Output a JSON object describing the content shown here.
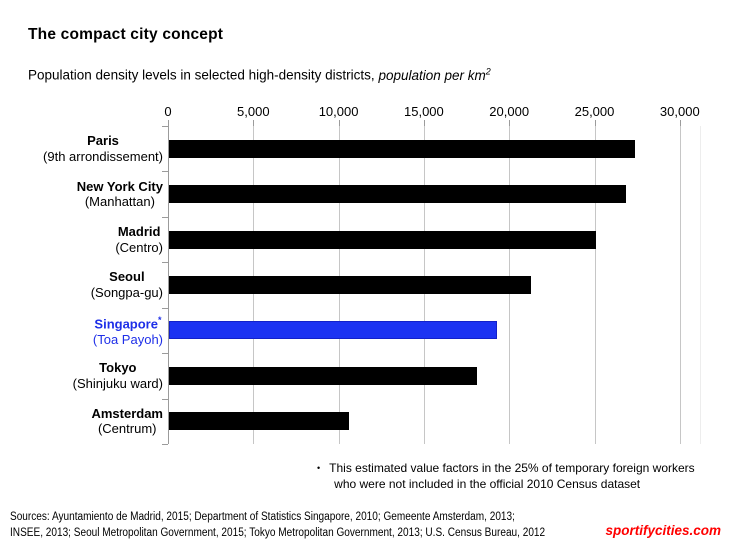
{
  "title": "The compact city concept",
  "subtitle": {
    "regular": "Population density levels in selected high-density districts, ",
    "italic": "population per km",
    "superscript": "2"
  },
  "chart_data": {
    "type": "bar",
    "orientation": "horizontal",
    "title": "Population density levels in selected high-density districts, population per km2",
    "categories": [
      {
        "city": "Paris",
        "district": "(9th arrondissement)"
      },
      {
        "city": "New York City",
        "district": "(Manhattan)"
      },
      {
        "city": "Madrid",
        "district": "(Centro)"
      },
      {
        "city": "Seoul",
        "district": "(Songpa-gu)"
      },
      {
        "city": "Singapore",
        "marker": "*",
        "district": "(Toa Payoh)"
      },
      {
        "city": "Tokyo",
        "district": "(Shinjuku ward)"
      },
      {
        "city": "Amsterdam",
        "district": "(Centrum)"
      }
    ],
    "values": [
      27300,
      26800,
      25000,
      21200,
      19200,
      18050,
      10550
    ],
    "highlight_index": 4,
    "colors": {
      "bar": "#000000",
      "highlight_bar": "#1C33F2",
      "highlight_border": "#1321C9",
      "highlight_text": "#1E2FE8"
    },
    "axis": {
      "position": "top",
      "min": 0,
      "max": 30000,
      "tick_interval": 5000,
      "tick_labels": [
        "0",
        "5,000",
        "10,000",
        "15,000",
        "20,000",
        "25,000",
        "30,000"
      ]
    },
    "gridlines": true,
    "legend": "none"
  },
  "footnote": {
    "bullet": "•",
    "line1": "This estimated value factors in the 25% of temporary foreign workers",
    "line2": "who were not included in the official 2010 Census dataset"
  },
  "sources": {
    "line1": "Sources:  Ayuntamiento de Madrid, 2015; Department of Statistics Singapore, 2010; Gemeente Amsterdam, 2013;",
    "line2": "INSEE, 2013; Seoul Metropolitan Government, 2015; Tokyo Metropolitan Government, 2013; U.S. Census Bureau, 2012"
  },
  "brand": {
    "text": "sportifycities.com",
    "color": "#FF0000"
  }
}
